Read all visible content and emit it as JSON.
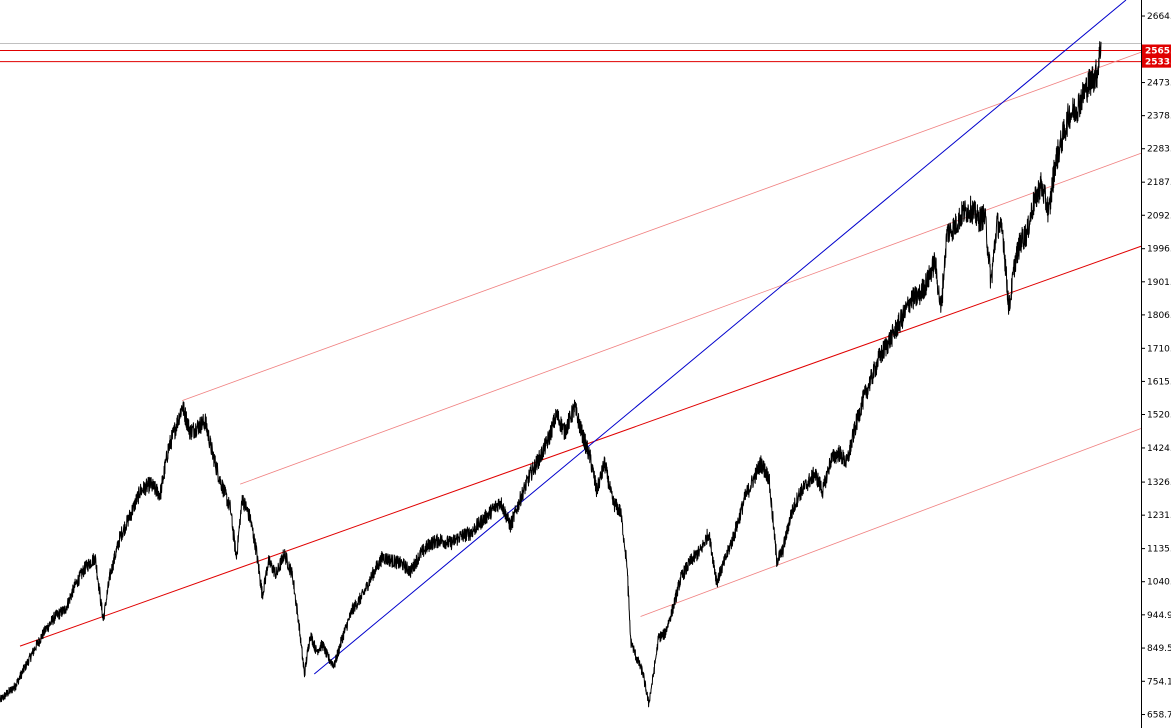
{
  "colors": {
    "background": "#ffffff",
    "price": "#000000",
    "axis": "#000000",
    "channel_red": "#e00000",
    "channel_light_red": "#f08080",
    "trend_blue": "#0000cc",
    "level_badge": "#e00000",
    "level_badge_text": "#ffffff",
    "faint_level": "#c0c0c0"
  },
  "chart_data": {
    "type": "line",
    "y_axis_position": "right",
    "y_ticks": [
      "2664.",
      "2473.",
      "2378.",
      "2283.",
      "2187.",
      "2092.",
      "1996.",
      "1901.",
      "1806.",
      "1710.",
      "1615.",
      "1520.",
      "1424.",
      "1326.",
      "1231.",
      "1135.",
      "1040.",
      "944.9",
      "849.5",
      "754.1",
      "658.7"
    ],
    "y_tick_values": [
      2664,
      2473,
      2378,
      2283,
      2187,
      2092,
      1996,
      1901,
      1806,
      1710,
      1615,
      1520,
      1424,
      1326,
      1231,
      1135,
      1040,
      944.9,
      849.5,
      754.1,
      658.7
    ],
    "ylim": [
      620,
      2710
    ],
    "xlim": [
      0,
      1140
    ],
    "horizontal_levels": [
      {
        "value": 2565,
        "label": "2565."
      },
      {
        "value": 2533,
        "label": "2533."
      }
    ],
    "faint_levels": [
      2585
    ],
    "price_anchors": [
      [
        0,
        700
      ],
      [
        15,
        740
      ],
      [
        25,
        795
      ],
      [
        35,
        850
      ],
      [
        45,
        900
      ],
      [
        55,
        940
      ],
      [
        65,
        960
      ],
      [
        75,
        1030
      ],
      [
        85,
        1080
      ],
      [
        95,
        1110
      ],
      [
        103,
        930
      ],
      [
        110,
        1060
      ],
      [
        120,
        1170
      ],
      [
        130,
        1230
      ],
      [
        140,
        1300
      ],
      [
        150,
        1320
      ],
      [
        160,
        1290
      ],
      [
        168,
        1420
      ],
      [
        175,
        1480
      ],
      [
        182,
        1545
      ],
      [
        190,
        1470
      ],
      [
        200,
        1490
      ],
      [
        205,
        1500
      ],
      [
        212,
        1410
      ],
      [
        220,
        1330
      ],
      [
        230,
        1250
      ],
      [
        236,
        1110
      ],
      [
        242,
        1280
      ],
      [
        250,
        1220
      ],
      [
        256,
        1130
      ],
      [
        262,
        1000
      ],
      [
        268,
        1100
      ],
      [
        276,
        1060
      ],
      [
        284,
        1120
      ],
      [
        292,
        1060
      ],
      [
        298,
        930
      ],
      [
        304,
        775
      ],
      [
        310,
        890
      ],
      [
        316,
        840
      ],
      [
        322,
        860
      ],
      [
        328,
        820
      ],
      [
        334,
        800
      ],
      [
        342,
        880
      ],
      [
        352,
        960
      ],
      [
        362,
        1000
      ],
      [
        372,
        1060
      ],
      [
        382,
        1110
      ],
      [
        392,
        1100
      ],
      [
        402,
        1090
      ],
      [
        410,
        1070
      ],
      [
        420,
        1120
      ],
      [
        430,
        1150
      ],
      [
        440,
        1160
      ],
      [
        450,
        1150
      ],
      [
        460,
        1170
      ],
      [
        470,
        1180
      ],
      [
        480,
        1210
      ],
      [
        490,
        1240
      ],
      [
        500,
        1270
      ],
      [
        510,
        1200
      ],
      [
        520,
        1280
      ],
      [
        530,
        1350
      ],
      [
        540,
        1400
      ],
      [
        548,
        1450
      ],
      [
        556,
        1520
      ],
      [
        564,
        1470
      ],
      [
        574,
        1540
      ],
      [
        582,
        1460
      ],
      [
        590,
        1390
      ],
      [
        596,
        1300
      ],
      [
        604,
        1380
      ],
      [
        612,
        1270
      ],
      [
        620,
        1240
      ],
      [
        626,
        1100
      ],
      [
        630,
        870
      ],
      [
        636,
        820
      ],
      [
        642,
        780
      ],
      [
        648,
        690
      ],
      [
        652,
        760
      ],
      [
        658,
        880
      ],
      [
        664,
        890
      ],
      [
        672,
        960
      ],
      [
        680,
        1050
      ],
      [
        690,
        1100
      ],
      [
        700,
        1130
      ],
      [
        708,
        1180
      ],
      [
        716,
        1040
      ],
      [
        724,
        1100
      ],
      [
        734,
        1180
      ],
      [
        744,
        1280
      ],
      [
        752,
        1330
      ],
      [
        760,
        1380
      ],
      [
        768,
        1340
      ],
      [
        776,
        1100
      ],
      [
        782,
        1130
      ],
      [
        790,
        1230
      ],
      [
        798,
        1290
      ],
      [
        806,
        1320
      ],
      [
        814,
        1350
      ],
      [
        822,
        1300
      ],
      [
        830,
        1390
      ],
      [
        838,
        1410
      ],
      [
        846,
        1380
      ],
      [
        854,
        1480
      ],
      [
        862,
        1560
      ],
      [
        870,
        1620
      ],
      [
        878,
        1680
      ],
      [
        886,
        1720
      ],
      [
        894,
        1760
      ],
      [
        902,
        1800
      ],
      [
        910,
        1850
      ],
      [
        918,
        1860
      ],
      [
        926,
        1900
      ],
      [
        934,
        1960
      ],
      [
        940,
        1820
      ],
      [
        946,
        2040
      ],
      [
        954,
        2060
      ],
      [
        962,
        2100
      ],
      [
        970,
        2110
      ],
      [
        978,
        2080
      ],
      [
        984,
        2090
      ],
      [
        990,
        1900
      ],
      [
        996,
        2070
      ],
      [
        1002,
        2040
      ],
      [
        1008,
        1820
      ],
      [
        1014,
        1960
      ],
      [
        1020,
        2020
      ],
      [
        1026,
        2040
      ],
      [
        1032,
        2120
      ],
      [
        1040,
        2180
      ],
      [
        1048,
        2100
      ],
      [
        1054,
        2240
      ],
      [
        1060,
        2300
      ],
      [
        1068,
        2380
      ],
      [
        1076,
        2400
      ],
      [
        1084,
        2450
      ],
      [
        1090,
        2480
      ],
      [
        1096,
        2500
      ],
      [
        1100,
        2590
      ]
    ],
    "trend_lines": [
      {
        "style": "red",
        "points": [
          [
            20,
            855
          ],
          [
            1140,
            2003
          ]
        ]
      },
      {
        "style": "light_red",
        "points": [
          [
            182,
            1560
          ],
          [
            1140,
            2560
          ]
        ]
      },
      {
        "style": "light_red",
        "points": [
          [
            240,
            1320
          ],
          [
            1140,
            2270
          ]
        ]
      },
      {
        "style": "light_red",
        "points": [
          [
            640,
            940
          ],
          [
            1140,
            1480
          ]
        ]
      },
      {
        "style": "blue",
        "points": [
          [
            314,
            775
          ],
          [
            1125,
            2710
          ]
        ]
      }
    ]
  }
}
